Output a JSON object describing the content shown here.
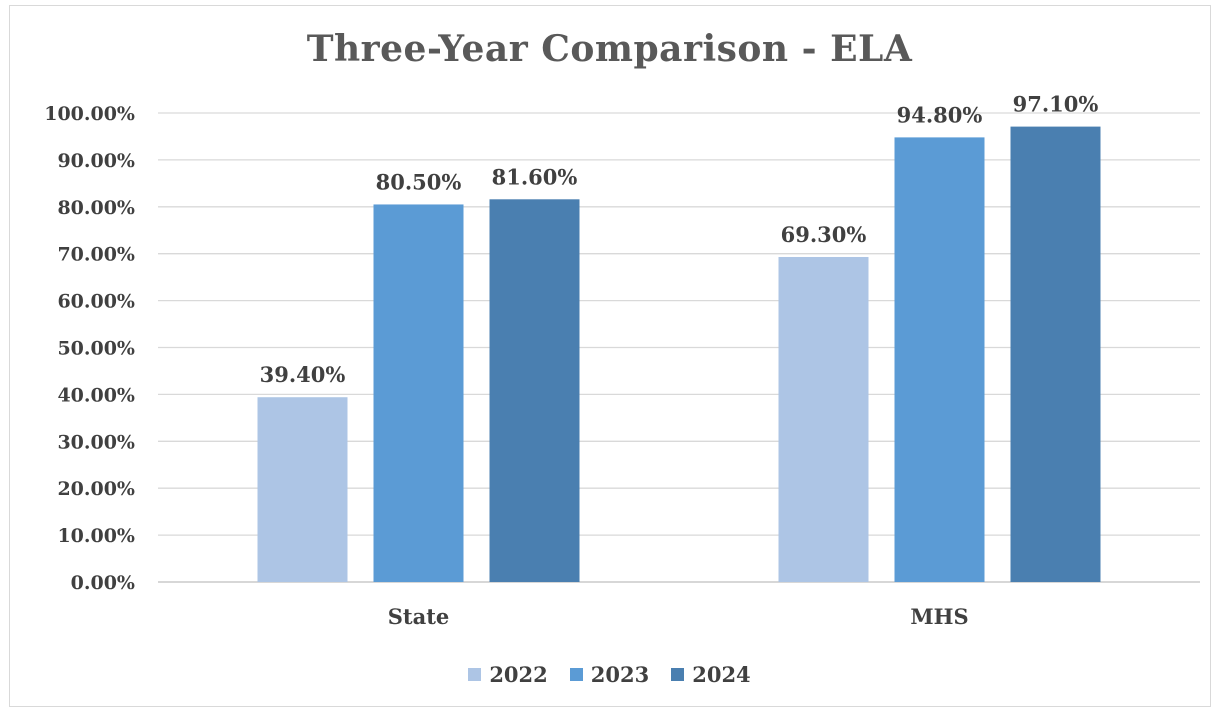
{
  "chart_data": {
    "type": "bar",
    "title": "Three-Year Comparison - ELA",
    "categories": [
      "State",
      "MHS"
    ],
    "series": [
      {
        "name": "2022",
        "color": "#adc5e5",
        "values": [
          39.4,
          69.3
        ],
        "labels": [
          "39.40%",
          "69.30%"
        ]
      },
      {
        "name": "2023",
        "color": "#5b9bd5",
        "values": [
          80.5,
          94.8
        ],
        "labels": [
          "80.50%",
          "94.80%"
        ]
      },
      {
        "name": "2024",
        "color": "#4a7fb0",
        "values": [
          81.6,
          97.1
        ],
        "labels": [
          "81.60%",
          "97.10%"
        ]
      }
    ],
    "ylim": [
      0,
      100
    ],
    "yticks": [
      "0.00%",
      "10.00%",
      "20.00%",
      "30.00%",
      "40.00%",
      "50.00%",
      "60.00%",
      "70.00%",
      "80.00%",
      "90.00%",
      "100.00%"
    ],
    "grid": true,
    "legend_position": "bottom"
  }
}
